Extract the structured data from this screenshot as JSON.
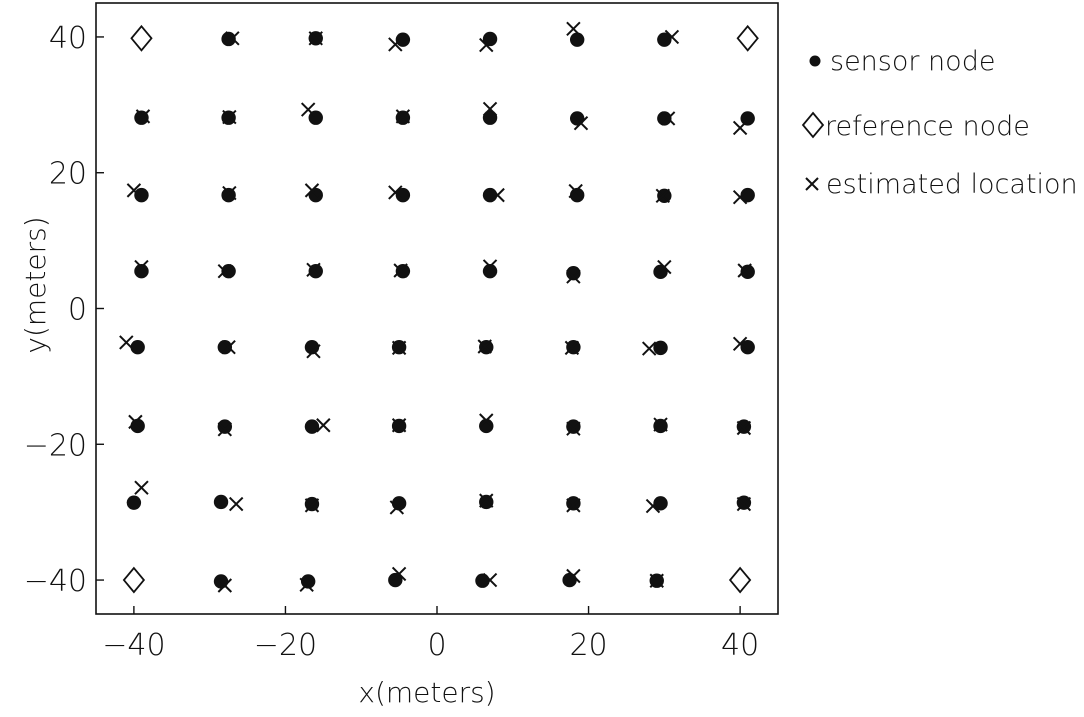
{
  "chart_data": {
    "type": "scatter",
    "title": "",
    "xlabel": "x(meters)",
    "ylabel": "y(meters)",
    "xlim": [
      -45,
      45
    ],
    "ylim": [
      -45,
      45
    ],
    "xticks": [
      -40,
      -20,
      0,
      20,
      40
    ],
    "yticks": [
      -40,
      -20,
      0,
      20,
      40
    ],
    "xtick_labels": [
      "−40",
      "−20",
      "0",
      "20",
      "40"
    ],
    "ytick_labels": [
      "−40",
      "−20",
      "0",
      "20",
      "40"
    ],
    "grid": false,
    "legend_position": "outside-right-top",
    "series": [
      {
        "name": "sensor node",
        "marker": "filled-circle",
        "points": [
          [
            -27.5,
            39.7
          ],
          [
            -16,
            39.8
          ],
          [
            -4.5,
            39.6
          ],
          [
            7,
            39.7
          ],
          [
            18.5,
            39.6
          ],
          [
            30,
            39.6
          ],
          [
            -39,
            28.1
          ],
          [
            -27.5,
            28.1
          ],
          [
            -16,
            28.1
          ],
          [
            -4.5,
            28.1
          ],
          [
            7,
            28.1
          ],
          [
            18.5,
            28.0
          ],
          [
            30,
            28.0
          ],
          [
            41,
            28.0
          ],
          [
            -39,
            16.7
          ],
          [
            -27.5,
            16.7
          ],
          [
            -16,
            16.7
          ],
          [
            -4.5,
            16.7
          ],
          [
            7,
            16.7
          ],
          [
            18.5,
            16.7
          ],
          [
            30,
            16.6
          ],
          [
            41,
            16.7
          ],
          [
            -39,
            5.5
          ],
          [
            -27.5,
            5.5
          ],
          [
            -16,
            5.5
          ],
          [
            -4.5,
            5.5
          ],
          [
            7,
            5.5
          ],
          [
            18,
            5.2
          ],
          [
            29.5,
            5.4
          ],
          [
            41,
            5.4
          ],
          [
            -39.5,
            -5.7
          ],
          [
            -28,
            -5.7
          ],
          [
            -16.5,
            -5.7
          ],
          [
            -5,
            -5.7
          ],
          [
            6.5,
            -5.7
          ],
          [
            18,
            -5.7
          ],
          [
            29.5,
            -5.8
          ],
          [
            41,
            -5.7
          ],
          [
            -39.5,
            -17.3
          ],
          [
            -28,
            -17.4
          ],
          [
            -16.5,
            -17.4
          ],
          [
            -5,
            -17.3
          ],
          [
            6.5,
            -17.3
          ],
          [
            18,
            -17.4
          ],
          [
            29.5,
            -17.3
          ],
          [
            40.5,
            -17.4
          ],
          [
            -40,
            -28.6
          ],
          [
            -28.5,
            -28.5
          ],
          [
            -16.5,
            -28.8
          ],
          [
            -5,
            -28.7
          ],
          [
            6.5,
            -28.5
          ],
          [
            18,
            -28.7
          ],
          [
            29.5,
            -28.7
          ],
          [
            40.5,
            -28.6
          ],
          [
            -28.5,
            -40.2
          ],
          [
            -17,
            -40.2
          ],
          [
            -5.5,
            -40.0
          ],
          [
            6,
            -40.1
          ],
          [
            17.5,
            -40.0
          ],
          [
            29,
            -40.1
          ]
        ]
      },
      {
        "name": "reference node",
        "marker": "open-diamond",
        "points": [
          [
            -39,
            39.8
          ],
          [
            41,
            39.8
          ],
          [
            -40,
            -40.0
          ],
          [
            40,
            -40.0
          ]
        ]
      },
      {
        "name": "estimated location",
        "marker": "x",
        "points": [
          [
            -27,
            39.8
          ],
          [
            -16,
            39.8
          ],
          [
            -5.5,
            38.9
          ],
          [
            6.5,
            38.8
          ],
          [
            18,
            41.2
          ],
          [
            31,
            40.0
          ],
          [
            -38.8,
            28.3
          ],
          [
            -27.4,
            28.2
          ],
          [
            -17,
            29.3
          ],
          [
            -4.5,
            28.3
          ],
          [
            7,
            29.4
          ],
          [
            19,
            27.3
          ],
          [
            30.5,
            28.0
          ],
          [
            40,
            26.6
          ],
          [
            -40,
            17.4
          ],
          [
            -27.4,
            17.0
          ],
          [
            -16.5,
            17.4
          ],
          [
            -5.5,
            17.1
          ],
          [
            8,
            16.7
          ],
          [
            18.3,
            17.3
          ],
          [
            29.8,
            16.6
          ],
          [
            40,
            16.4
          ],
          [
            -39,
            6.1
          ],
          [
            -28,
            5.5
          ],
          [
            -16.3,
            5.7
          ],
          [
            -4.8,
            5.6
          ],
          [
            7,
            6.2
          ],
          [
            18,
            4.7
          ],
          [
            30,
            6.1
          ],
          [
            40.6,
            5.6
          ],
          [
            -41,
            -5.0
          ],
          [
            -27.5,
            -5.7
          ],
          [
            -16.3,
            -6.3
          ],
          [
            -5,
            -5.8
          ],
          [
            6.3,
            -5.6
          ],
          [
            17.8,
            -5.8
          ],
          [
            28,
            -5.9
          ],
          [
            40,
            -5.2
          ],
          [
            -39.8,
            -16.7
          ],
          [
            -28,
            -17.8
          ],
          [
            -15,
            -17.2
          ],
          [
            -5,
            -17.2
          ],
          [
            6.5,
            -16.5
          ],
          [
            18,
            -17.7
          ],
          [
            29.5,
            -17.1
          ],
          [
            40.5,
            -17.6
          ],
          [
            -39,
            -26.4
          ],
          [
            -26.5,
            -28.8
          ],
          [
            -16.5,
            -29.0
          ],
          [
            -5.3,
            -29.3
          ],
          [
            6.5,
            -28.3
          ],
          [
            18,
            -29.0
          ],
          [
            28.5,
            -29.1
          ],
          [
            40.5,
            -28.8
          ],
          [
            -28,
            -40.8
          ],
          [
            -17.2,
            -40.7
          ],
          [
            -5,
            -39.1
          ],
          [
            7,
            -40.0
          ],
          [
            18,
            -39.4
          ],
          [
            29,
            -40.1
          ]
        ]
      }
    ]
  }
}
